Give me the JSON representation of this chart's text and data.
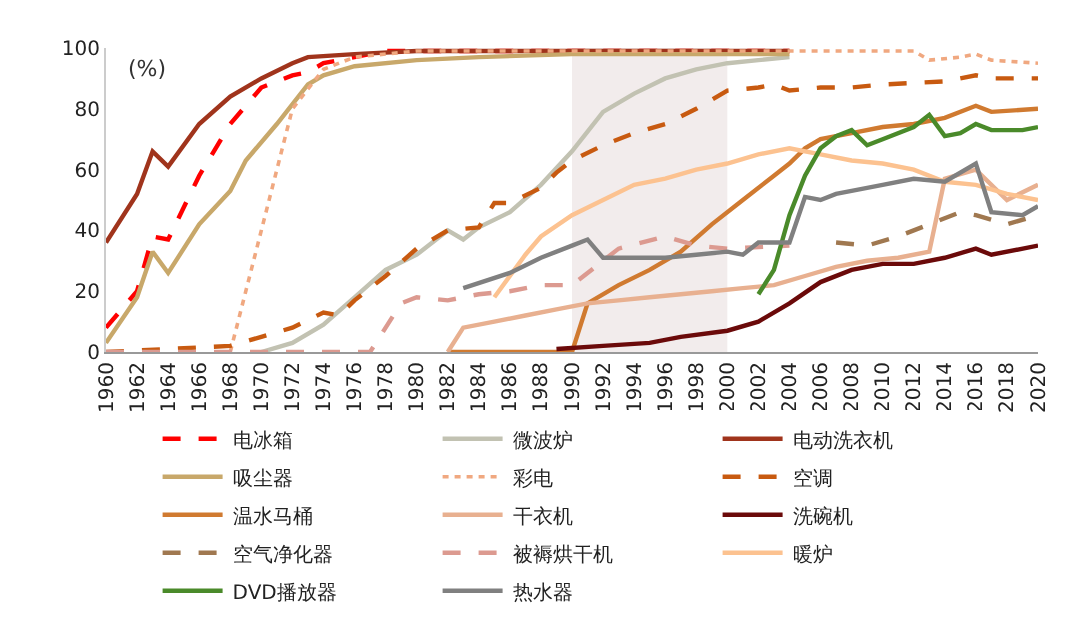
{
  "chart_data": {
    "type": "line",
    "annotations": [
      "(%)"
    ],
    "xlim": [
      1960,
      2020
    ],
    "xticks": [
      1960,
      1962,
      1964,
      1966,
      1968,
      1970,
      1972,
      1974,
      1976,
      1978,
      1980,
      1982,
      1984,
      1986,
      1988,
      1990,
      1992,
      1994,
      1996,
      1998,
      2000,
      2002,
      2004,
      2006,
      2008,
      2010,
      2012,
      2014,
      2016,
      2018,
      2020
    ],
    "ylim": [
      0,
      100
    ],
    "yticks": [
      0,
      20,
      40,
      60,
      80,
      100
    ],
    "grid": false,
    "legend": "bottom",
    "marker": "none",
    "bands": [
      {
        "axis": "x",
        "from": 1990,
        "to": 2000,
        "color": "#f2ecec"
      }
    ],
    "series": [
      {
        "name": "电冰箱",
        "color": "#ff0000",
        "line_style": "dashed",
        "x": [
          1960,
          1962,
          1963,
          1964,
          1966,
          1968,
          1970,
          1972,
          1973,
          1974,
          1976,
          1978,
          1980,
          2004
        ],
        "values": [
          8,
          20,
          38,
          37,
          58,
          75,
          87,
          91,
          92,
          95,
          97,
          99,
          99,
          99
        ]
      },
      {
        "name": "微波炉",
        "color": "#c2c2b2",
        "line_style": "solid",
        "x": [
          1970,
          1972,
          1974,
          1976,
          1978,
          1980,
          1982,
          1983,
          1984,
          1986,
          1988,
          1990,
          1992,
          1994,
          1996,
          1998,
          2000,
          2002,
          2004
        ],
        "values": [
          0,
          3,
          9,
          18,
          27,
          32,
          40,
          37,
          41,
          46,
          55,
          66,
          79,
          85,
          90,
          93,
          95,
          96,
          97
        ]
      },
      {
        "name": "电动洗衣机",
        "color": "#a0341c",
        "line_style": "solid",
        "x": [
          1960,
          1962,
          1963,
          1964,
          1966,
          1968,
          1970,
          1972,
          1973,
          1976,
          1980,
          2004
        ],
        "values": [
          36,
          52,
          66,
          61,
          75,
          84,
          90,
          95,
          97,
          98,
          99,
          99
        ]
      },
      {
        "name": "吸尘器",
        "color": "#c8a86a",
        "line_style": "solid",
        "x": [
          1960,
          1962,
          1963,
          1964,
          1966,
          1968,
          1969,
          1971,
          1973,
          1974,
          1976,
          1980,
          1984,
          1990,
          2004
        ],
        "values": [
          3,
          18,
          33,
          26,
          42,
          53,
          63,
          75,
          88,
          91,
          94,
          96,
          97,
          98,
          98
        ]
      },
      {
        "name": "彩电",
        "color": "#f0a880",
        "line_style": "dotted",
        "x": [
          1968,
          1970,
          1972,
          1974,
          1976,
          1980,
          2004,
          2012,
          2013,
          2015,
          2016,
          2017,
          2020
        ],
        "values": [
          0,
          40,
          80,
          93,
          97,
          99,
          99,
          99,
          96,
          97,
          98,
          96,
          95
        ]
      },
      {
        "name": "空调",
        "color": "#c85a10",
        "line_style": "dashed",
        "x": [
          1960,
          1964,
          1968,
          1970,
          1972,
          1974,
          1975,
          1976,
          1978,
          1980,
          1982,
          1984,
          1985,
          1986,
          1988,
          1989,
          1990,
          1992,
          1994,
          1996,
          1998,
          2000,
          2002,
          2003,
          2004,
          2006,
          2008,
          2010,
          2014,
          2016,
          2017,
          2020
        ],
        "values": [
          0,
          1,
          2,
          5,
          8,
          13,
          12,
          17,
          25,
          34,
          40,
          41,
          49,
          49,
          54,
          59,
          63,
          68,
          72,
          75,
          80,
          86,
          87,
          88,
          86,
          87,
          87,
          88,
          89,
          91,
          90,
          90
        ]
      },
      {
        "name": "温水马桶",
        "color": "#d07a30",
        "line_style": "solid",
        "x": [
          1982,
          1990,
          1991,
          1993,
          1995,
          1997,
          1999,
          2001,
          2003,
          2004,
          2005,
          2006,
          2008,
          2010,
          2012,
          2014,
          2016,
          2017,
          2020
        ],
        "values": [
          0,
          0,
          16,
          22,
          27,
          33,
          42,
          50,
          58,
          62,
          67,
          70,
          72,
          74,
          75,
          77,
          81,
          79,
          80
        ]
      },
      {
        "name": "干衣机",
        "color": "#e8b090",
        "line_style": "solid",
        "x": [
          1982,
          1983,
          1985,
          1987,
          1989,
          1991,
          1993,
          1995,
          1997,
          1999,
          2001,
          2003,
          2005,
          2007,
          2009,
          2011,
          2013,
          2014,
          2016,
          2018,
          2020
        ],
        "values": [
          0,
          8,
          10,
          12,
          14,
          16,
          17,
          18,
          19,
          20,
          21,
          22,
          25,
          28,
          30,
          31,
          33,
          57,
          60,
          50,
          55
        ]
      },
      {
        "name": "洗碗机",
        "color": "#6b0a0a",
        "line_style": "solid",
        "x": [
          1989,
          1992,
          1995,
          1997,
          2000,
          2002,
          2004,
          2006,
          2008,
          2010,
          2012,
          2014,
          2016,
          2017,
          2020
        ],
        "values": [
          1,
          2,
          3,
          5,
          7,
          10,
          16,
          23,
          27,
          29,
          29,
          31,
          34,
          32,
          35
        ]
      },
      {
        "name": "空气净化器",
        "color": "#a07850",
        "line_style": "dashed",
        "x": [
          2007,
          2009,
          2011,
          2013,
          2015,
          2016,
          2018,
          2020
        ],
        "values": [
          36,
          35,
          38,
          42,
          46,
          45,
          42,
          45
        ]
      },
      {
        "name": "被褥烘干机",
        "color": "#dc9a90",
        "line_style": "dashed",
        "x": [
          1960,
          1977,
          1979,
          1980,
          1982,
          1984,
          1986,
          1988,
          1990,
          1991,
          1993,
          1996,
          1998,
          2000,
          2004
        ],
        "values": [
          0,
          0,
          16,
          18,
          17,
          19,
          20,
          22,
          22,
          26,
          34,
          38,
          35,
          34,
          35
        ]
      },
      {
        "name": "暖炉",
        "color": "#fcc290",
        "line_style": "solid",
        "x": [
          1985,
          1987,
          1988,
          1990,
          1992,
          1994,
          1996,
          1998,
          2000,
          2002,
          2004,
          2006,
          2008,
          2010,
          2012,
          2014,
          2016,
          2018,
          2020
        ],
        "values": [
          18,
          32,
          38,
          45,
          50,
          55,
          57,
          60,
          62,
          65,
          67,
          65,
          63,
          62,
          60,
          56,
          55,
          52,
          50
        ]
      },
      {
        "name": "DVD播放器",
        "color": "#4a8a2a",
        "line_style": "solid",
        "x": [
          2002,
          2003,
          2004,
          2005,
          2006,
          2007,
          2008,
          2009,
          2010,
          2012,
          2013,
          2014,
          2015,
          2016,
          2017,
          2019,
          2020
        ],
        "values": [
          19,
          27,
          45,
          58,
          67,
          71,
          73,
          68,
          70,
          74,
          78,
          71,
          72,
          75,
          73,
          73,
          74
        ]
      },
      {
        "name": "热水器",
        "color": "#808080",
        "line_style": "solid",
        "x": [
          1983,
          1986,
          1988,
          1990,
          1991,
          1992,
          1994,
          1996,
          1998,
          2000,
          2001,
          2002,
          2004,
          2005,
          2006,
          2007,
          2008,
          2010,
          2012,
          2014,
          2016,
          2017,
          2019,
          2020
        ],
        "values": [
          21,
          26,
          31,
          35,
          37,
          31,
          31,
          31,
          32,
          33,
          32,
          36,
          36,
          51,
          50,
          52,
          53,
          55,
          57,
          56,
          62,
          46,
          45,
          48
        ]
      }
    ]
  }
}
